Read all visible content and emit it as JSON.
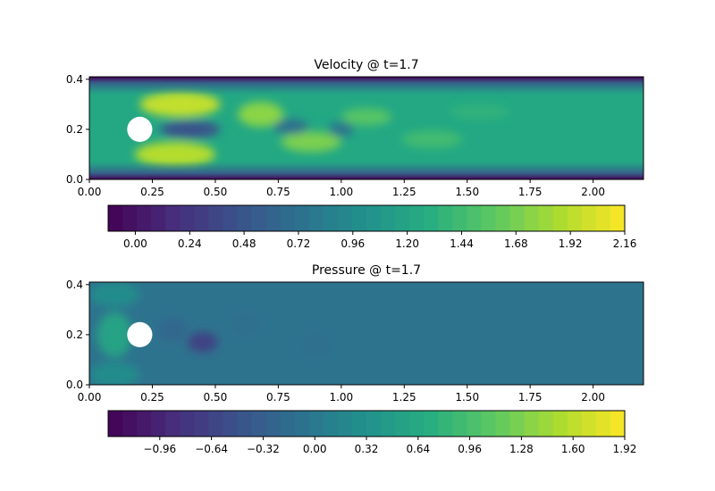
{
  "chart_data": [
    {
      "type": "heatmap",
      "title": "Velocity @ t=1.7",
      "xlabel": "",
      "ylabel": "",
      "xlim": [
        0,
        2.2
      ],
      "ylim": [
        0,
        0.41
      ],
      "xticks": [
        "0.00",
        "0.25",
        "0.50",
        "0.75",
        "1.00",
        "1.25",
        "1.50",
        "1.75",
        "2.00"
      ],
      "yticks": [
        "0.0",
        "0.2",
        "0.4"
      ],
      "colormap": "viridis",
      "colorbar": {
        "range": [
          -0.12,
          2.16
        ],
        "ticks": [
          "0.00",
          "0.24",
          "0.48",
          "0.72",
          "0.96",
          "1.20",
          "1.44",
          "1.68",
          "1.92",
          "2.16"
        ]
      },
      "obstacle": {
        "type": "circle",
        "cx": 0.2,
        "cy": 0.2,
        "r": 0.05
      },
      "blobs": [
        {
          "x": 0.36,
          "y": 0.3,
          "rx": 0.16,
          "ry": 0.05,
          "v": 1.95
        },
        {
          "x": 0.34,
          "y": 0.1,
          "rx": 0.16,
          "ry": 0.05,
          "v": 1.9
        },
        {
          "x": 0.68,
          "y": 0.26,
          "rx": 0.09,
          "ry": 0.05,
          "v": 1.75
        },
        {
          "x": 0.88,
          "y": 0.15,
          "rx": 0.12,
          "ry": 0.04,
          "v": 1.7
        },
        {
          "x": 1.1,
          "y": 0.25,
          "rx": 0.1,
          "ry": 0.035,
          "v": 1.55
        },
        {
          "x": 1.36,
          "y": 0.16,
          "rx": 0.12,
          "ry": 0.035,
          "v": 1.45
        },
        {
          "x": 1.55,
          "y": 0.27,
          "rx": 0.12,
          "ry": 0.03,
          "v": 1.35
        },
        {
          "x": 0.4,
          "y": 0.2,
          "rx": 0.12,
          "ry": 0.035,
          "v": 0.45
        },
        {
          "x": 0.8,
          "y": 0.21,
          "rx": 0.07,
          "ry": 0.03,
          "v": 0.7
        },
        {
          "x": 1.0,
          "y": 0.2,
          "rx": 0.05,
          "ry": 0.03,
          "v": 0.75
        }
      ]
    },
    {
      "type": "heatmap",
      "title": "Pressure @ t=1.7",
      "xlabel": "",
      "ylabel": "",
      "xlim": [
        0,
        2.2
      ],
      "ylim": [
        0,
        0.41
      ],
      "xticks": [
        "0.00",
        "0.25",
        "0.50",
        "0.75",
        "1.00",
        "1.25",
        "1.50",
        "1.75",
        "2.00"
      ],
      "yticks": [
        "0.0",
        "0.2",
        "0.4"
      ],
      "colormap": "viridis",
      "colorbar": {
        "range": [
          -1.28,
          1.92
        ],
        "ticks": [
          "−0.96",
          "−0.64",
          "−0.32",
          "0.00",
          "0.32",
          "0.64",
          "0.96",
          "1.28",
          "1.60",
          "1.92"
        ]
      },
      "obstacle": {
        "type": "circle",
        "cx": 0.2,
        "cy": 0.2,
        "r": 0.05
      },
      "blobs": [
        {
          "x": 0.135,
          "y": 0.2,
          "rx": 0.02,
          "ry": 0.03,
          "v": 1.85
        },
        {
          "x": 0.1,
          "y": 0.2,
          "rx": 0.07,
          "ry": 0.09,
          "v": 0.55
        },
        {
          "x": 0.45,
          "y": 0.17,
          "rx": 0.06,
          "ry": 0.04,
          "v": -0.65
        },
        {
          "x": 0.33,
          "y": 0.22,
          "rx": 0.06,
          "ry": 0.05,
          "v": -0.2
        },
        {
          "x": 0.62,
          "y": 0.24,
          "rx": 0.06,
          "ry": 0.05,
          "v": -0.12
        },
        {
          "x": 0.9,
          "y": 0.16,
          "rx": 0.06,
          "ry": 0.05,
          "v": -0.1
        },
        {
          "x": 0.1,
          "y": 0.36,
          "rx": 0.1,
          "ry": 0.05,
          "v": 0.25
        },
        {
          "x": 0.1,
          "y": 0.04,
          "rx": 0.1,
          "ry": 0.05,
          "v": 0.25
        }
      ]
    }
  ]
}
